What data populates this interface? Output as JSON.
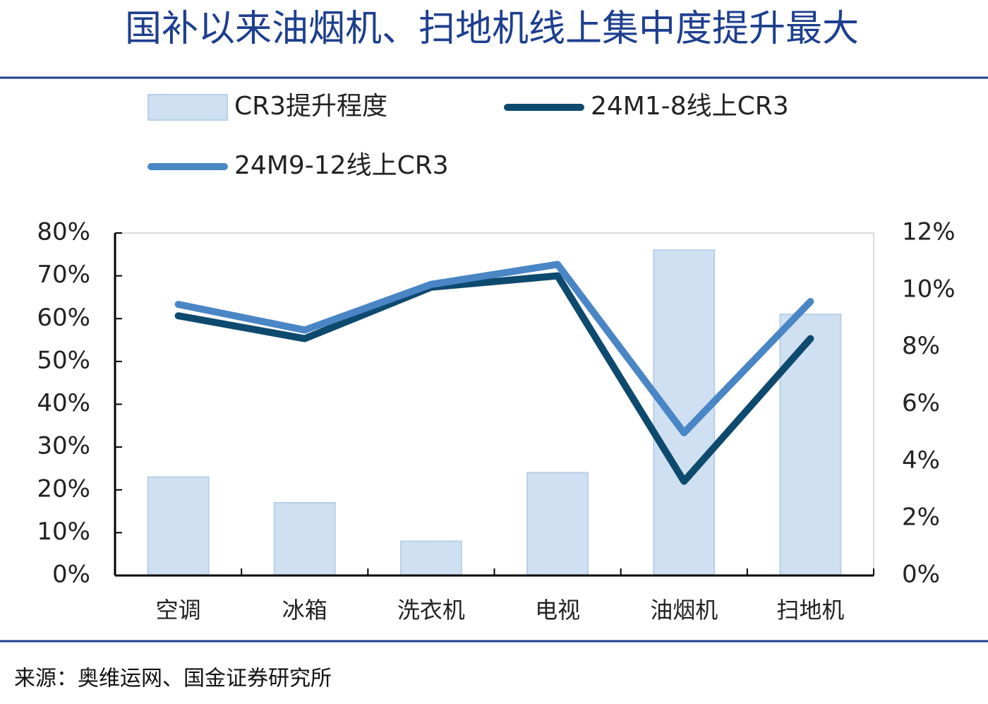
{
  "chart_data": {
    "type": "combo",
    "title": "国补以来油烟机、扫地机线上集中度提升最大",
    "source": "来源：奥维运网、国金证券研究所",
    "categories": [
      "空调",
      "冰箱",
      "洗衣机",
      "电视",
      "油烟机",
      "扫地机"
    ],
    "series": [
      {
        "name": "CR3提升程度",
        "type": "bar",
        "color": "#cfe0f2",
        "values": [
          23,
          17,
          8,
          24,
          76,
          61
        ]
      },
      {
        "name": "24M1-8线上CR3",
        "type": "line",
        "axis": "y2",
        "color": "#0e4a6e",
        "values": [
          9.1,
          8.3,
          10.1,
          10.5,
          3.3,
          8.3
        ]
      },
      {
        "name": "24M9-12线上CR3",
        "type": "line",
        "axis": "y2",
        "color": "#4a86c5",
        "values": [
          9.5,
          8.6,
          10.2,
          10.9,
          5.0,
          9.6
        ]
      }
    ],
    "ylim": [
      0,
      80
    ],
    "yticks": [
      {
        "value": 0,
        "label": "0%"
      },
      {
        "value": 10,
        "label": "10%"
      },
      {
        "value": 20,
        "label": "20%"
      },
      {
        "value": 30,
        "label": "30%"
      },
      {
        "value": 40,
        "label": "40%"
      },
      {
        "value": 50,
        "label": "50%"
      },
      {
        "value": 60,
        "label": "60%"
      },
      {
        "value": 70,
        "label": "70%"
      },
      {
        "value": 80,
        "label": "80%"
      }
    ],
    "y2lim": [
      0,
      12
    ],
    "y2ticks": [
      {
        "value": 0,
        "label": "0%"
      },
      {
        "value": 2,
        "label": "2%"
      },
      {
        "value": 4,
        "label": "4%"
      },
      {
        "value": 6,
        "label": "6%"
      },
      {
        "value": 8,
        "label": "8%"
      },
      {
        "value": 10,
        "label": "10%"
      },
      {
        "value": 12,
        "label": "12%"
      }
    ]
  }
}
